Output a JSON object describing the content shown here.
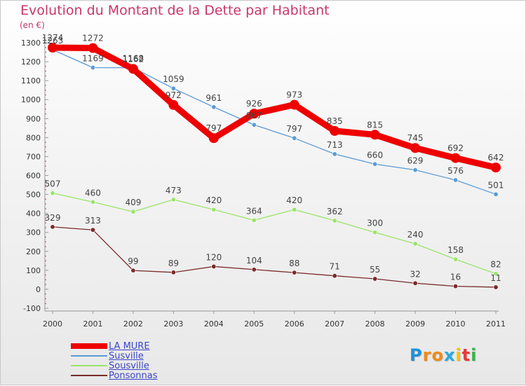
{
  "title": "Evolution du Montant de la Dette par Habitant",
  "unit": "(en €)",
  "logo": {
    "letters": [
      "P",
      "r",
      "o",
      "x",
      "i",
      "t",
      "i"
    ],
    "colors": [
      "#1e90d8",
      "#f08a1c",
      "#f08a1c",
      "#2aa8e0",
      "#f5c400",
      "#e83a3a",
      "#3ab54a"
    ]
  },
  "chart_data": {
    "type": "line",
    "categories": [
      "2000",
      "2001",
      "2002",
      "2003",
      "2004",
      "2005",
      "2006",
      "2007",
      "2008",
      "2009",
      "2010",
      "2011"
    ],
    "ylim": [
      -100,
      1300
    ],
    "yticks": [
      -100,
      0,
      100,
      200,
      300,
      400,
      500,
      600,
      700,
      800,
      900,
      1000,
      1100,
      1200,
      1300
    ],
    "grid": false,
    "legend": "bottom-left",
    "series": [
      {
        "name": "LA MURE",
        "color": "#ee0000",
        "width": 9,
        "values": [
          1274,
          1272,
          1162,
          972,
          797,
          926,
          973,
          835,
          815,
          745,
          692,
          642
        ]
      },
      {
        "name": "Susville",
        "color": "#5b9bd5",
        "width": 1.3,
        "values": [
          1263,
          1169,
          1168,
          1059,
          961,
          867,
          797,
          713,
          660,
          629,
          576,
          501
        ]
      },
      {
        "name": "Sousville",
        "color": "#9be46a",
        "width": 1.3,
        "values": [
          507,
          460,
          409,
          473,
          420,
          364,
          420,
          362,
          300,
          240,
          158,
          82
        ]
      },
      {
        "name": "Ponsonnas",
        "color": "#7a2a2a",
        "width": 1.3,
        "values": [
          329,
          313,
          99,
          89,
          120,
          104,
          88,
          71,
          55,
          32,
          16,
          11
        ]
      }
    ]
  }
}
